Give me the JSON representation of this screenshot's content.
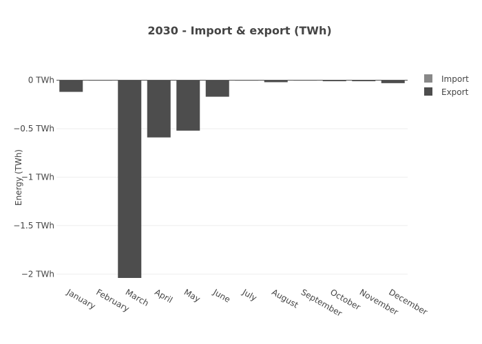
{
  "chart_data": {
    "type": "bar",
    "title": "2030 - Import & export (TWh)",
    "xlabel": "",
    "ylabel": "Energy (TWh)",
    "categories": [
      "January",
      "February",
      "March",
      "April",
      "May",
      "June",
      "July",
      "August",
      "September",
      "October",
      "November",
      "December"
    ],
    "series": [
      {
        "name": "Import",
        "color": "#888888",
        "values": [
          0,
          0,
          0,
          0,
          0,
          0,
          0,
          0,
          0,
          0,
          0,
          0
        ]
      },
      {
        "name": "Export",
        "color": "#4d4d4d",
        "values": [
          -0.12,
          0,
          -2.04,
          -0.59,
          -0.52,
          -0.17,
          0,
          -0.02,
          0,
          -0.01,
          -0.01,
          -0.03
        ]
      }
    ],
    "ylim": [
      -2.04,
      0.04
    ],
    "yticks": [
      0,
      -0.5,
      -1,
      -1.5,
      -2
    ],
    "ytick_labels": [
      "0 TWh",
      "−0.5 TWh",
      "−1 TWh",
      "−1.5 TWh",
      "−2 TWh"
    ],
    "grid": true,
    "legend_position": "top-right"
  }
}
